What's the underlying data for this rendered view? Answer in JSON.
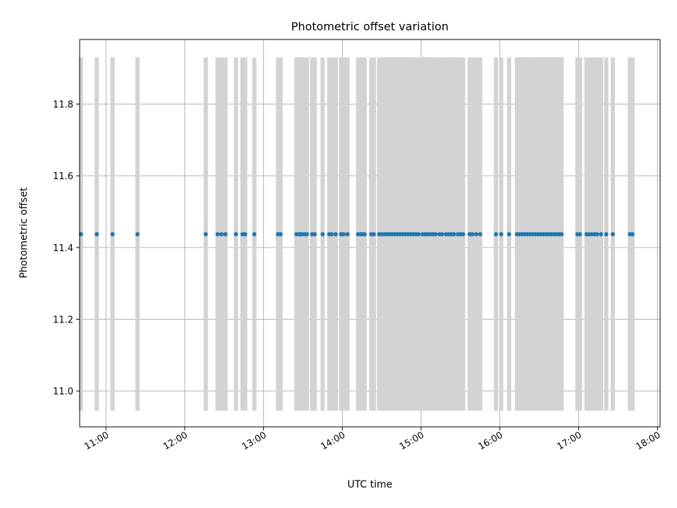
{
  "chart_data": {
    "type": "scatter",
    "title": "Photometric offset variation",
    "xlabel": "UTC time",
    "ylabel": "Photometric offset",
    "xlim": [
      "10:40",
      "18:02"
    ],
    "ylim": [
      10.9,
      11.98
    ],
    "grid": true,
    "x_ticks": [
      "11:00",
      "12:00",
      "13:00",
      "14:00",
      "15:00",
      "16:00",
      "17:00",
      "18:00"
    ],
    "y_ticks": [
      "11.0",
      "11.2",
      "11.4",
      "11.6",
      "11.8"
    ],
    "error_bar_range": [
      10.945,
      11.93
    ],
    "series": [
      {
        "values_y": 11.437,
        "x": [
          "10:41",
          "10:53",
          "11:05",
          "11:24",
          "12:16",
          "12:25",
          "12:28",
          "12:31",
          "12:39",
          "12:44",
          "12:46",
          "12:53",
          "13:11",
          "13:13",
          "13:25",
          "13:27",
          "13:28",
          "13:29",
          "13:31",
          "13:33",
          "13:37",
          "13:39",
          "13:45",
          "13:50",
          "13:52",
          "13:55",
          "13:59",
          "14:01",
          "14:04",
          "14:12",
          "14:14",
          "14:15",
          "14:17",
          "14:22",
          "14:24",
          "14:28",
          "14:30",
          "14:32",
          "14:34",
          "14:36",
          "14:38",
          "14:40",
          "14:42",
          "14:44",
          "14:46",
          "14:48",
          "14:50",
          "14:52",
          "14:54",
          "14:56",
          "14:58",
          "15:01",
          "15:03",
          "15:05",
          "15:07",
          "15:09",
          "15:11",
          "15:14",
          "15:16",
          "15:19",
          "15:21",
          "15:23",
          "15:25",
          "15:28",
          "15:30",
          "15:32",
          "15:37",
          "15:39",
          "15:42",
          "15:45",
          "15:57",
          "16:01",
          "16:07",
          "16:13",
          "16:15",
          "16:17",
          "16:19",
          "16:21",
          "16:23",
          "16:25",
          "16:27",
          "16:29",
          "16:31",
          "16:33",
          "16:35",
          "16:37",
          "16:39",
          "16:41",
          "16:43",
          "16:45",
          "16:47",
          "16:59",
          "17:01",
          "17:06",
          "17:08",
          "17:10",
          "17:12",
          "17:14",
          "17:17",
          "17:21",
          "17:26",
          "17:39",
          "17:41"
        ],
        "color": "#1f77b4"
      }
    ],
    "error_bar_color": "#d3d3d3"
  }
}
